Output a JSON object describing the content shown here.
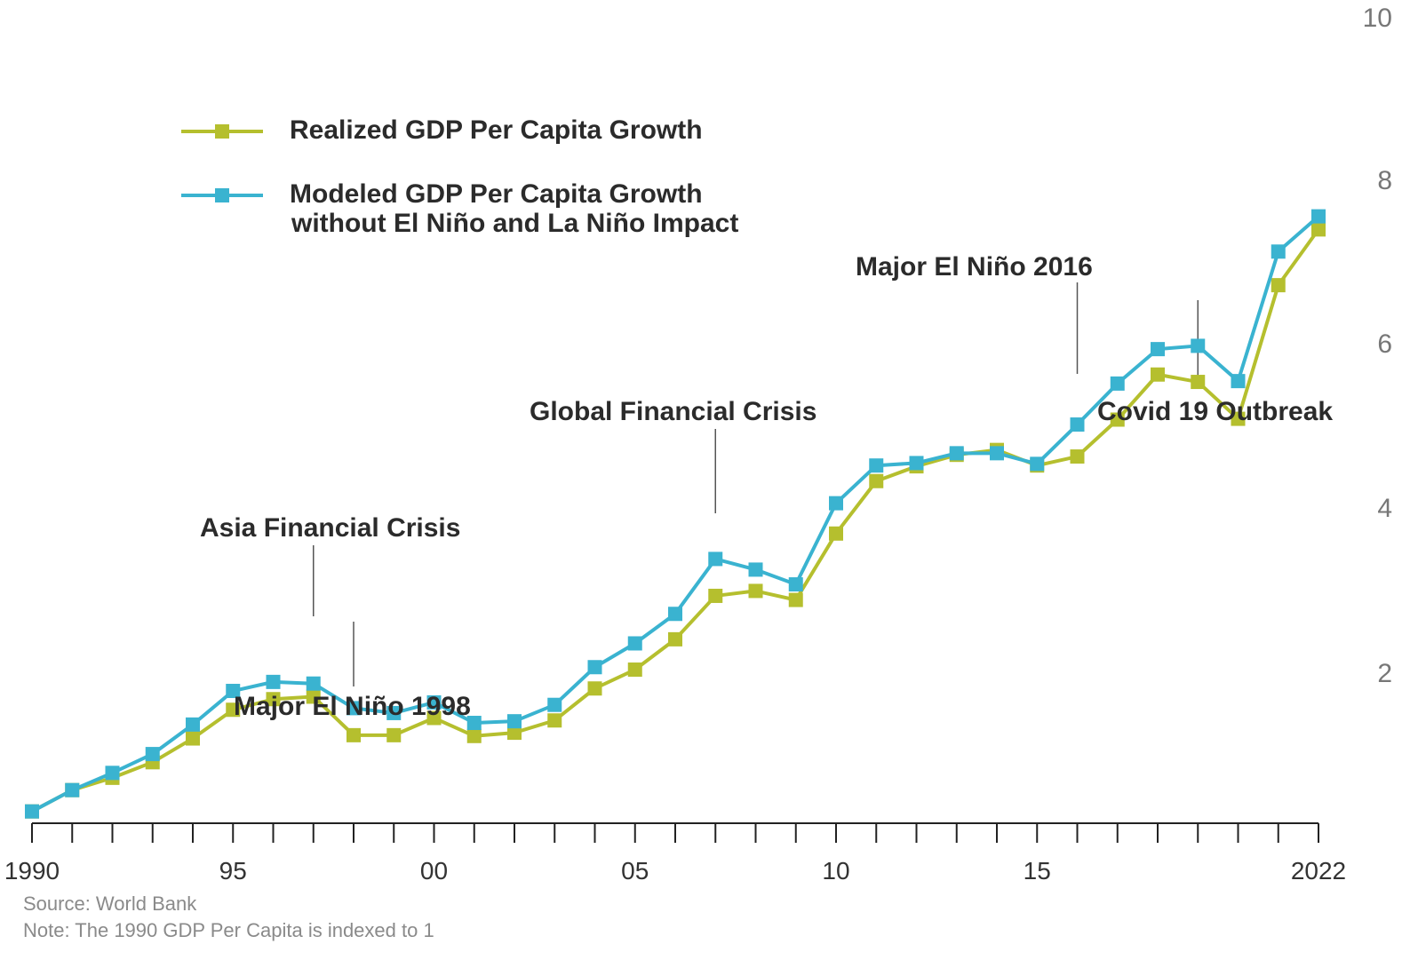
{
  "chart_data": {
    "type": "line",
    "x": [
      1990,
      1991,
      1992,
      1993,
      1994,
      1995,
      1996,
      1997,
      1998,
      1999,
      2000,
      2001,
      2002,
      2003,
      2004,
      2005,
      2006,
      2007,
      2008,
      2009,
      2010,
      2011,
      2012,
      2013,
      2014,
      2015,
      2016,
      2017,
      2018,
      2019,
      2020,
      2021,
      2022
    ],
    "x_tick_labels": [
      {
        "x": 1990,
        "label": "1990"
      },
      {
        "x": 1995,
        "label": "95"
      },
      {
        "x": 2000,
        "label": "00"
      },
      {
        "x": 2005,
        "label": "05"
      },
      {
        "x": 2010,
        "label": "10"
      },
      {
        "x": 2015,
        "label": "15"
      },
      {
        "x": 2022,
        "label": "2022"
      }
    ],
    "y_tick_labels": [
      "2",
      "4",
      "6",
      "8",
      "10"
    ],
    "ylim": [
      0,
      10
    ],
    "grid": false,
    "legend_placement": "top-left",
    "series": [
      {
        "name": "Realized GDP Per Capita Growth",
        "color": "#b5bf2e",
        "values": [
          1.0,
          1.26,
          1.41,
          1.6,
          1.89,
          2.24,
          2.37,
          2.4,
          1.93,
          1.93,
          2.14,
          1.92,
          1.96,
          2.11,
          2.5,
          2.73,
          3.1,
          3.63,
          3.69,
          3.58,
          4.39,
          5.03,
          5.21,
          5.35,
          5.41,
          5.22,
          5.33,
          5.78,
          6.33,
          6.24,
          5.79,
          7.42,
          8.1
        ]
      },
      {
        "name": "Modeled GDP Per Capita Growth without El Niño and La Niño Impact",
        "name_line2": "without El Niño and La Niño Impact",
        "name_line1": "Modeled GDP Per Capita Growth",
        "color": "#3ab3d0",
        "values": [
          1.0,
          1.26,
          1.47,
          1.7,
          2.06,
          2.47,
          2.58,
          2.56,
          2.26,
          2.2,
          2.33,
          2.08,
          2.1,
          2.3,
          2.76,
          3.05,
          3.41,
          4.08,
          3.95,
          3.77,
          4.76,
          5.22,
          5.25,
          5.37,
          5.37,
          5.24,
          5.72,
          6.22,
          6.64,
          6.68,
          6.25,
          7.83,
          8.26
        ]
      }
    ],
    "annotations": [
      {
        "label": "Asia Financial Crisis",
        "x": 1997
      },
      {
        "label": "Major El Niño 1998",
        "x": 1998
      },
      {
        "label": "Global Financial Crisis",
        "x": 2007
      },
      {
        "label": "Major El Niño 2016",
        "x": 2016
      },
      {
        "label": "Covid 19 Outbreak",
        "x": 2019
      }
    ]
  },
  "footer": {
    "source": "Source: World Bank",
    "note": "Note: The 1990 GDP  Per Capita is indexed to 1"
  }
}
